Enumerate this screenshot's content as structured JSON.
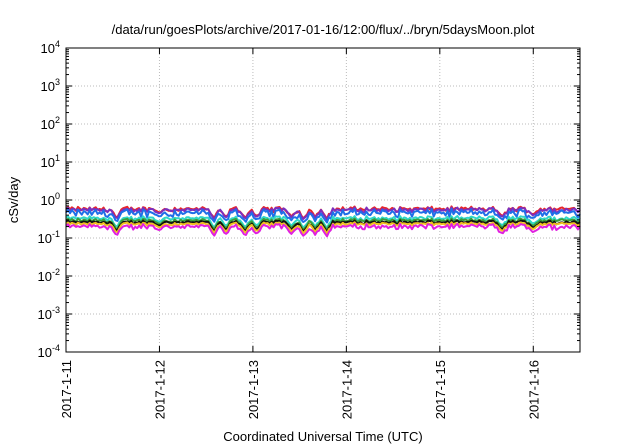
{
  "chart_data": {
    "type": "line",
    "title": "/data/run/goesPlots/archive/2017-01-16/12:00/flux/../bryn/5daysMoon.plot",
    "xlabel": "Coordinated Universal Time (UTC)",
    "ylabel": "cSv/day",
    "yscale": "log",
    "ylim": [
      0.0001,
      10000
    ],
    "yticks": [
      {
        "base": "10",
        "exp": "-4",
        "value": 0.0001
      },
      {
        "base": "10",
        "exp": "-3",
        "value": 0.001
      },
      {
        "base": "10",
        "exp": "-2",
        "value": 0.01
      },
      {
        "base": "10",
        "exp": "-1",
        "value": 0.1
      },
      {
        "base": "10",
        "exp": "0",
        "value": 1
      },
      {
        "base": "10",
        "exp": "1",
        "value": 10
      },
      {
        "base": "10",
        "exp": "2",
        "value": 100
      },
      {
        "base": "10",
        "exp": "3",
        "value": 1000
      },
      {
        "base": "10",
        "exp": "4",
        "value": 10000
      }
    ],
    "xlim": [
      "2017-01-11T00:00",
      "2017-01-16T12:00"
    ],
    "xticks": [
      "2017-1-11",
      "2017-1-12",
      "2017-1-13",
      "2017-1-14",
      "2017-1-15",
      "2017-1-16"
    ],
    "grid": true,
    "legend": "none",
    "series": [
      {
        "color": "#e8262a",
        "baseline": 0.58,
        "amp": 0.16
      },
      {
        "color": "#7b2fbf",
        "baseline": 0.55,
        "amp": 0.14
      },
      {
        "color": "#1f6fe8",
        "baseline": 0.46,
        "amp": 0.2
      },
      {
        "color": "#2fd8c8",
        "baseline": 0.33,
        "amp": 0.08
      },
      {
        "color": "#3a9e3a",
        "baseline": 0.29,
        "amp": 0.06
      },
      {
        "color": "#111111",
        "baseline": 0.26,
        "amp": 0.05
      },
      {
        "color": "#f0c020",
        "baseline": 0.235,
        "amp": 0.04
      },
      {
        "color": "#e020e0",
        "baseline": 0.2,
        "amp": 0.06
      }
    ],
    "dips": [
      {
        "x": "2017-01-11T13:00",
        "to": 0.11
      },
      {
        "x": "2017-01-12T00:00",
        "to": 0.16
      },
      {
        "x": "2017-01-12T14:00",
        "to": 0.11
      },
      {
        "x": "2017-01-12T17:00",
        "to": 0.12
      },
      {
        "x": "2017-01-12T22:00",
        "to": 0.11
      },
      {
        "x": "2017-01-13T01:00",
        "to": 0.12
      },
      {
        "x": "2017-01-13T10:00",
        "to": 0.12
      },
      {
        "x": "2017-01-13T13:00",
        "to": 0.11
      },
      {
        "x": "2017-01-13T16:00",
        "to": 0.12
      },
      {
        "x": "2017-01-13T19:00",
        "to": 0.11
      },
      {
        "x": "2017-01-15T16:00",
        "to": 0.12
      },
      {
        "x": "2017-01-16T00:00",
        "to": 0.14
      }
    ]
  }
}
